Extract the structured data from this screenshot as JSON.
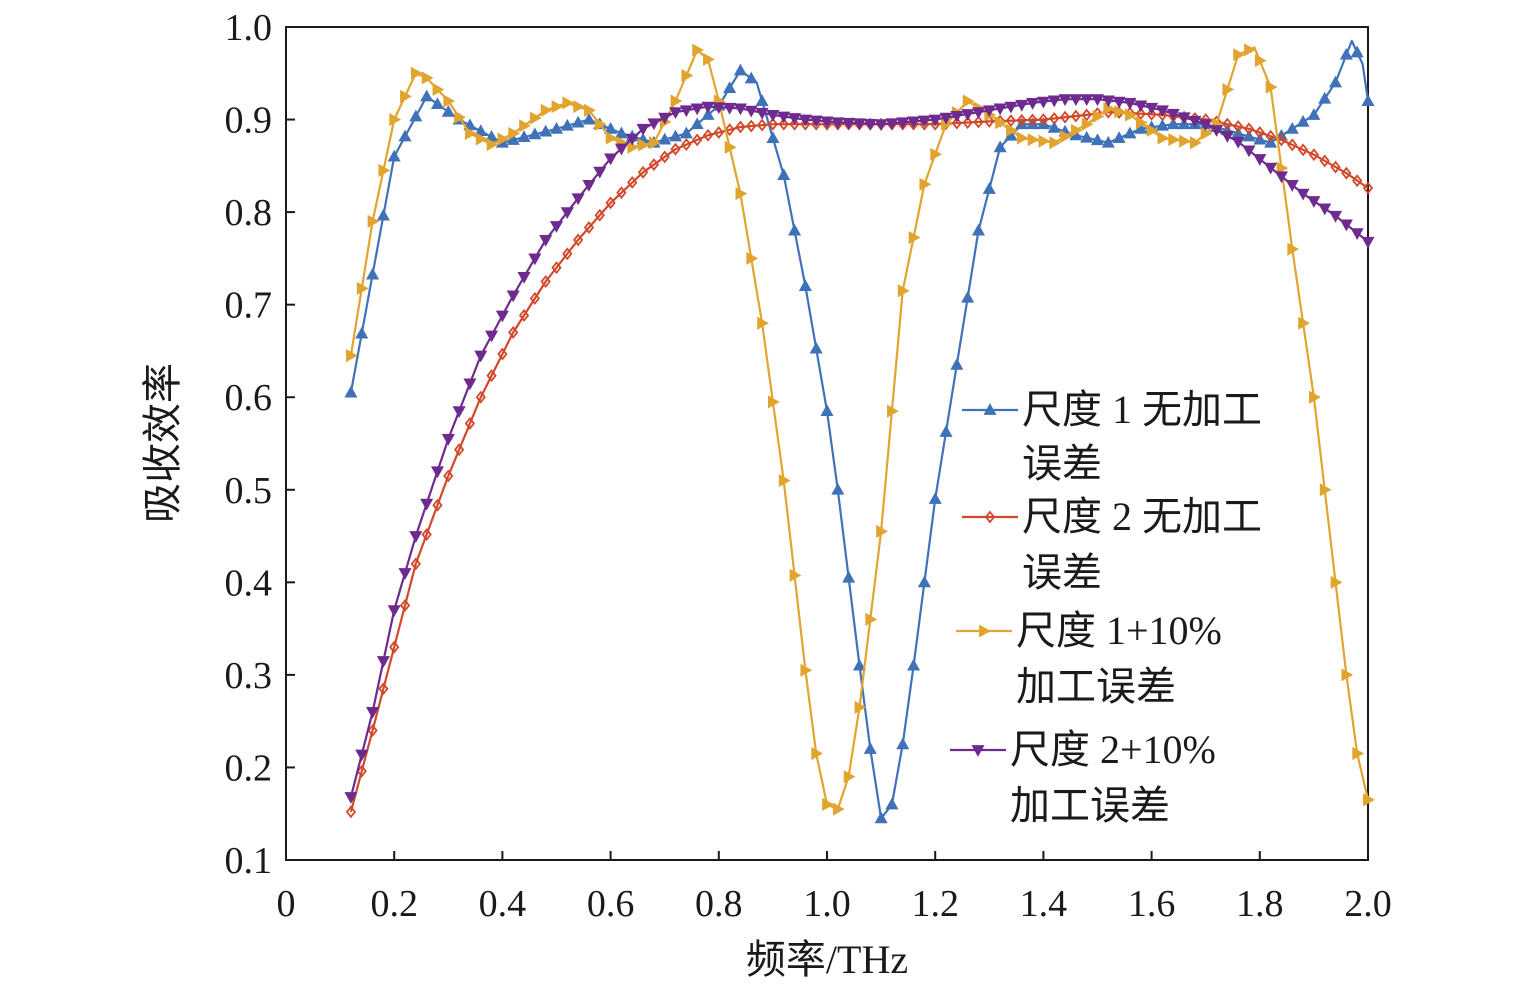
{
  "chart_data": {
    "type": "line",
    "xlabel": "频率/THz",
    "ylabel": "吸收效率",
    "xlim": [
      0,
      2.0
    ],
    "ylim": [
      0.1,
      1.0
    ],
    "x_ticks": [
      "0",
      "0.2",
      "0.4",
      "0.6",
      "0.8",
      "1.0",
      "1.2",
      "1.4",
      "1.6",
      "1.8",
      "2.0"
    ],
    "y_ticks": [
      "0.1",
      "0.2",
      "0.3",
      "0.4",
      "0.5",
      "0.6",
      "0.7",
      "0.8",
      "0.9",
      "1.0"
    ],
    "legend_position": "right-center",
    "grid": false,
    "series": [
      {
        "name_lines": [
          "尺度 1 无加工",
          "误差"
        ],
        "color": "#3f72b8",
        "marker": "triangle-up",
        "points": [
          [
            0.12,
            0.605
          ],
          [
            0.2,
            0.86
          ],
          [
            0.26,
            0.925
          ],
          [
            0.32,
            0.9
          ],
          [
            0.4,
            0.875
          ],
          [
            0.5,
            0.89
          ],
          [
            0.56,
            0.9
          ],
          [
            0.62,
            0.885
          ],
          [
            0.68,
            0.875
          ],
          [
            0.74,
            0.885
          ],
          [
            0.8,
            0.915
          ],
          [
            0.84,
            0.953
          ],
          [
            0.87,
            0.94
          ],
          [
            0.9,
            0.88
          ],
          [
            0.92,
            0.84
          ],
          [
            0.96,
            0.72
          ],
          [
            1.0,
            0.585
          ],
          [
            1.02,
            0.5
          ],
          [
            1.06,
            0.31
          ],
          [
            1.08,
            0.22
          ],
          [
            1.1,
            0.145
          ],
          [
            1.12,
            0.16
          ],
          [
            1.14,
            0.225
          ],
          [
            1.16,
            0.31
          ],
          [
            1.2,
            0.49
          ],
          [
            1.24,
            0.635
          ],
          [
            1.28,
            0.78
          ],
          [
            1.32,
            0.87
          ],
          [
            1.36,
            0.895
          ],
          [
            1.4,
            0.895
          ],
          [
            1.46,
            0.883
          ],
          [
            1.52,
            0.875
          ],
          [
            1.58,
            0.89
          ],
          [
            1.64,
            0.895
          ],
          [
            1.7,
            0.895
          ],
          [
            1.76,
            0.885
          ],
          [
            1.82,
            0.875
          ],
          [
            1.86,
            0.89
          ],
          [
            1.9,
            0.905
          ],
          [
            1.94,
            0.94
          ],
          [
            1.97,
            0.985
          ],
          [
            1.99,
            0.96
          ],
          [
            2.0,
            0.92
          ]
        ]
      },
      {
        "name_lines": [
          "尺度 2 无加工",
          "误差"
        ],
        "color": "#d2482a",
        "marker": "diamond",
        "points": [
          [
            0.12,
            0.152
          ],
          [
            0.16,
            0.24
          ],
          [
            0.2,
            0.33
          ],
          [
            0.24,
            0.42
          ],
          [
            0.3,
            0.515
          ],
          [
            0.36,
            0.6
          ],
          [
            0.42,
            0.67
          ],
          [
            0.48,
            0.725
          ],
          [
            0.54,
            0.77
          ],
          [
            0.6,
            0.81
          ],
          [
            0.66,
            0.843
          ],
          [
            0.72,
            0.868
          ],
          [
            0.78,
            0.883
          ],
          [
            0.84,
            0.892
          ],
          [
            0.9,
            0.895
          ],
          [
            1.0,
            0.895
          ],
          [
            1.1,
            0.895
          ],
          [
            1.2,
            0.895
          ],
          [
            1.3,
            0.898
          ],
          [
            1.4,
            0.9
          ],
          [
            1.48,
            0.905
          ],
          [
            1.52,
            0.908
          ],
          [
            1.56,
            0.907
          ],
          [
            1.62,
            0.905
          ],
          [
            1.7,
            0.9
          ],
          [
            1.78,
            0.89
          ],
          [
            1.84,
            0.878
          ],
          [
            1.9,
            0.862
          ],
          [
            1.96,
            0.842
          ],
          [
            2.0,
            0.826
          ]
        ]
      },
      {
        "name_lines": [
          "尺度 1+10%",
          "加工误差"
        ],
        "color": "#e1a42e",
        "marker": "triangle-right",
        "points": [
          [
            0.12,
            0.645
          ],
          [
            0.16,
            0.79
          ],
          [
            0.2,
            0.9
          ],
          [
            0.24,
            0.95
          ],
          [
            0.26,
            0.945
          ],
          [
            0.3,
            0.92
          ],
          [
            0.34,
            0.885
          ],
          [
            0.38,
            0.873
          ],
          [
            0.42,
            0.885
          ],
          [
            0.48,
            0.91
          ],
          [
            0.52,
            0.918
          ],
          [
            0.56,
            0.91
          ],
          [
            0.6,
            0.88
          ],
          [
            0.64,
            0.87
          ],
          [
            0.68,
            0.875
          ],
          [
            0.72,
            0.92
          ],
          [
            0.76,
            0.975
          ],
          [
            0.78,
            0.965
          ],
          [
            0.8,
            0.92
          ],
          [
            0.84,
            0.82
          ],
          [
            0.88,
            0.68
          ],
          [
            0.92,
            0.51
          ],
          [
            0.96,
            0.305
          ],
          [
            0.98,
            0.215
          ],
          [
            1.0,
            0.16
          ],
          [
            1.02,
            0.155
          ],
          [
            1.04,
            0.19
          ],
          [
            1.06,
            0.265
          ],
          [
            1.1,
            0.455
          ],
          [
            1.14,
            0.715
          ],
          [
            1.18,
            0.83
          ],
          [
            1.22,
            0.895
          ],
          [
            1.26,
            0.92
          ],
          [
            1.3,
            0.905
          ],
          [
            1.36,
            0.88
          ],
          [
            1.42,
            0.875
          ],
          [
            1.48,
            0.895
          ],
          [
            1.52,
            0.912
          ],
          [
            1.56,
            0.905
          ],
          [
            1.62,
            0.88
          ],
          [
            1.68,
            0.875
          ],
          [
            1.72,
            0.895
          ],
          [
            1.76,
            0.97
          ],
          [
            1.79,
            0.978
          ],
          [
            1.82,
            0.935
          ],
          [
            1.86,
            0.76
          ],
          [
            1.9,
            0.6
          ],
          [
            1.94,
            0.4
          ],
          [
            1.96,
            0.3
          ],
          [
            1.98,
            0.215
          ],
          [
            2.0,
            0.165
          ]
        ]
      },
      {
        "name_lines": [
          "尺度 2+10%",
          "加工误差"
        ],
        "color": "#6e2a8f",
        "marker": "triangle-down",
        "points": [
          [
            0.12,
            0.168
          ],
          [
            0.16,
            0.26
          ],
          [
            0.2,
            0.37
          ],
          [
            0.24,
            0.45
          ],
          [
            0.3,
            0.555
          ],
          [
            0.36,
            0.645
          ],
          [
            0.42,
            0.71
          ],
          [
            0.48,
            0.77
          ],
          [
            0.54,
            0.815
          ],
          [
            0.6,
            0.858
          ],
          [
            0.66,
            0.89
          ],
          [
            0.72,
            0.908
          ],
          [
            0.78,
            0.914
          ],
          [
            0.84,
            0.912
          ],
          [
            0.9,
            0.905
          ],
          [
            0.96,
            0.9
          ],
          [
            1.02,
            0.897
          ],
          [
            1.1,
            0.895
          ],
          [
            1.2,
            0.9
          ],
          [
            1.3,
            0.91
          ],
          [
            1.38,
            0.918
          ],
          [
            1.44,
            0.922
          ],
          [
            1.5,
            0.922
          ],
          [
            1.56,
            0.918
          ],
          [
            1.62,
            0.91
          ],
          [
            1.7,
            0.895
          ],
          [
            1.76,
            0.876
          ],
          [
            1.82,
            0.848
          ],
          [
            1.88,
            0.82
          ],
          [
            1.94,
            0.796
          ],
          [
            2.0,
            0.768
          ]
        ]
      }
    ]
  }
}
